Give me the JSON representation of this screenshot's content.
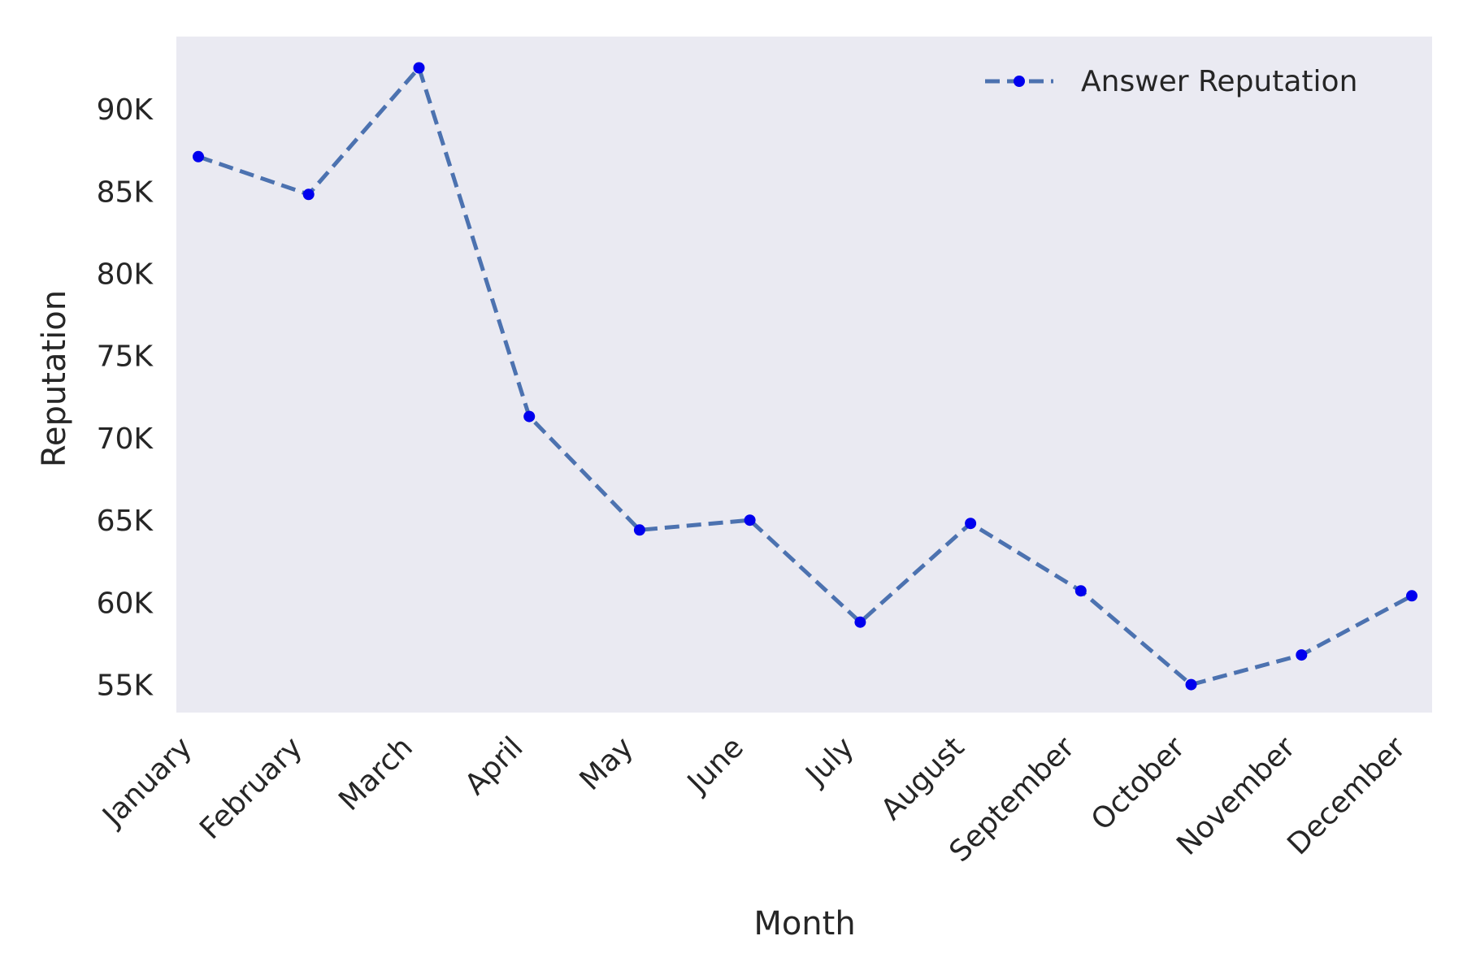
{
  "chart_data": {
    "type": "line",
    "title": "",
    "xlabel": "Month",
    "ylabel": "Reputation",
    "categories": [
      "January",
      "February",
      "March",
      "April",
      "May",
      "June",
      "July",
      "August",
      "September",
      "October",
      "November",
      "December"
    ],
    "series": [
      {
        "name": "Answer Reputation",
        "values": [
          87100,
          84800,
          92500,
          71300,
          64400,
          65000,
          58800,
          64800,
          60700,
          55000,
          56800,
          60400
        ],
        "line_color": "#4c72b0",
        "marker_color": "#0000ee",
        "line_style": "dashed",
        "marker": "circle"
      }
    ],
    "yticks": [
      55000,
      60000,
      65000,
      70000,
      75000,
      80000,
      85000,
      90000
    ],
    "ytick_labels": [
      "55K",
      "60K",
      "65K",
      "70K",
      "75K",
      "80K",
      "85K",
      "90K"
    ],
    "ylim": [
      53300,
      94400
    ],
    "grid": false,
    "legend_position": "top-right",
    "background": "#eaeaf2"
  }
}
